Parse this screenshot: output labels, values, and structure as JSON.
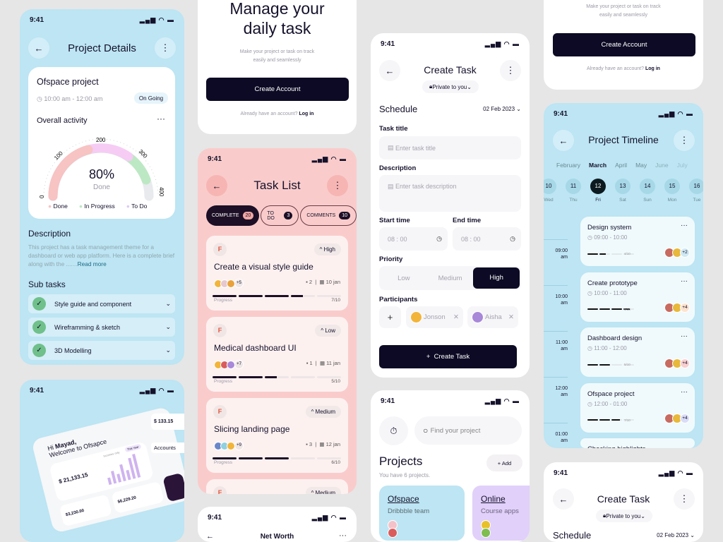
{
  "status_time": "9:41",
  "status_icons": "signal-wifi-battery",
  "project_details": {
    "title": "Project Details",
    "project_name": "Ofspace project",
    "time": "10:00 am - 12:00 am",
    "status_badge": "On Going",
    "activity_title": "Overall activity",
    "gauge_ticks": [
      "0",
      "100",
      "200",
      "300",
      "400"
    ],
    "gauge_percent": "80%",
    "gauge_caption": "Done",
    "gauge_done_fraction": 0.8,
    "legend": [
      {
        "label": "Done",
        "color": "#f7c3c3"
      },
      {
        "label": "In Progress",
        "color": "#bde8c4"
      },
      {
        "label": "To Do",
        "color": "#dccbf5"
      }
    ],
    "description_title": "Description",
    "description_text": "This project has a task management theme for a dashboard or web app platform. Here is a complete brief along with the .......",
    "read_more": "Read more",
    "subtasks_title": "Sub tasks",
    "subtasks": [
      "Style guide and component",
      "Wireframming & sketch",
      "3D Modelling"
    ]
  },
  "dashboard": {
    "greeting": "Hi",
    "name": "Mayad,",
    "welcome": "Welcome to Ofsapce",
    "balance": "$ 21,133.15",
    "income_label": "Incomes only",
    "period": "This Year",
    "months": [
      "Feb",
      "Mar",
      "Apr",
      "May",
      "Jun",
      "Jul"
    ],
    "card1": "$3,230.00",
    "card2": "$6,229.20",
    "side_value": "$ 133.15",
    "accounts": "Accounts"
  },
  "onboarding": {
    "headline_1": "Manage your",
    "headline_2": "daily task",
    "sub_1": "Make your project or task on track",
    "sub_2": "easily and seamlessly",
    "cta": "Create Account",
    "login_prompt": "Already have an account?",
    "login_link": "Log in"
  },
  "task_list": {
    "title": "Task List",
    "tabs": [
      {
        "label": "COMPLETE",
        "count": "20"
      },
      {
        "label": "TO DO",
        "count": "3"
      },
      {
        "label": "COMMENTS",
        "count": "10"
      }
    ],
    "tasks": [
      {
        "title": "Create a visual style guide",
        "priority": "High",
        "extra_members": "+5",
        "comments": "2",
        "date": "10 jan",
        "progress_label": "Progress",
        "progress": "7/10",
        "done": 7
      },
      {
        "title": "Medical dashboard UI",
        "priority": "Low",
        "extra_members": "+7",
        "comments": "1",
        "date": "11 jan",
        "progress_label": "Progress",
        "progress": "5/10",
        "done": 5
      },
      {
        "title": "Slicing landing page",
        "priority": "Medium",
        "extra_members": "+9",
        "comments": "3",
        "date": "12 jan",
        "progress_label": "Progress",
        "progress": "6/10",
        "done": 6
      },
      {
        "priority": "Medium"
      }
    ]
  },
  "net_worth": {
    "title": "Net Worth"
  },
  "create_task": {
    "title": "Create Task",
    "privacy": "Private to you",
    "schedule": "Schedule",
    "date": "02 Feb 2023",
    "task_title_label": "Task title",
    "task_title_placeholder": "Enter task title",
    "description_label": "Description",
    "description_placeholder": "Enter task description",
    "start_label": "Start time",
    "start_value": "08 : 00",
    "end_label": "End time",
    "end_value": "08 : 00",
    "priority_label": "Priority",
    "priorities": [
      "Low",
      "Medium",
      "High"
    ],
    "selected_priority": "High",
    "participants_label": "Participants",
    "participants": [
      "Jonson",
      "Aisha"
    ],
    "submit": "Create Task"
  },
  "projects": {
    "search_placeholder": "Find your project",
    "title": "Projects",
    "add": "+ Add",
    "subtitle": "You have 6 projects.",
    "cards": [
      {
        "name": "Ofspace",
        "team": "Dribbble team",
        "color": "#bde5f3"
      },
      {
        "name": "Online",
        "team": "Course apps",
        "color": "#e0d0fa"
      }
    ]
  },
  "timeline": {
    "title": "Project Timeline",
    "months": [
      "February",
      "March",
      "April",
      "May",
      "June",
      "July"
    ],
    "selected_month": "March",
    "days": [
      {
        "n": "10",
        "d": "Wed"
      },
      {
        "n": "11",
        "d": "Thu"
      },
      {
        "n": "12",
        "d": "Fri"
      },
      {
        "n": "13",
        "d": "Sat"
      },
      {
        "n": "14",
        "d": "Sun"
      },
      {
        "n": "15",
        "d": "Mon"
      },
      {
        "n": "16",
        "d": "Tue"
      }
    ],
    "selected_day": "12",
    "hours": [
      "09:00 am",
      "10:00 am",
      "11:00 am",
      "12:00 am",
      "01:00 am"
    ],
    "events": [
      {
        "title": "Design system",
        "time": "09:00 - 10:00",
        "progress": "4/10",
        "extra": "+2"
      },
      {
        "title": "Create prototype",
        "time": "10:00 - 11:00",
        "progress": "9/10",
        "extra": "+4"
      },
      {
        "title": "Dashboard design",
        "time": "11:00 - 12:00",
        "progress": "5/10",
        "extra": "+4"
      },
      {
        "title": "Ofspace project",
        "time": "12:00 - 01:00",
        "progress": "7/10",
        "extra": "+4"
      },
      {
        "title": "Checking highlights"
      }
    ]
  }
}
